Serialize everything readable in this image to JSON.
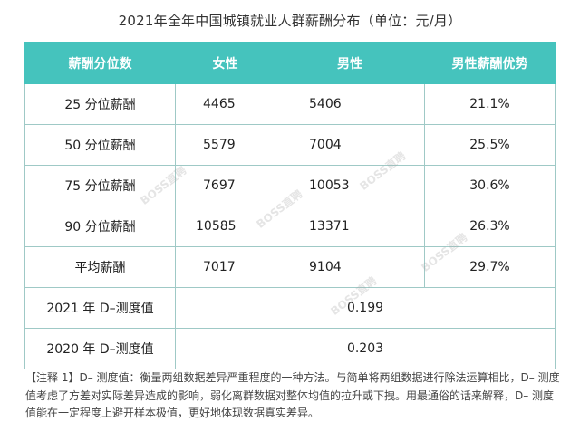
{
  "title": "2021年全年中国城镇就业人群薪酬分布（单位：元/月）",
  "chart_data": {
    "type": "table",
    "title": "2021年全年中国城镇就业人群薪酬分布（单位：元/月）",
    "columns": [
      "薪酬分位数",
      "女性",
      "男性",
      "男性薪酬优势"
    ],
    "rows": [
      [
        "25 分位薪酬",
        "4465",
        "5406",
        "21.1%"
      ],
      [
        "50 分位薪酬",
        "5579",
        "7004",
        "25.5%"
      ],
      [
        "75 分位薪酬",
        "7697",
        "10053",
        "30.6%"
      ],
      [
        "90 分位薪酬",
        "10585",
        "13371",
        "26.3%"
      ],
      [
        "平均薪酬",
        "7017",
        "9104",
        "29.7%"
      ]
    ],
    "d_rows": [
      [
        "2021 年 D–测度值",
        "0.199"
      ],
      [
        "2020 年 D–测度值",
        "0.203"
      ]
    ]
  },
  "note": "【注释 1】D– 测度值：衡量两组数据差异严重程度的一种方法。与简单将两组数据进行除法运算相比，D– 测度值考虑了方差对实际差异造成的影响，弱化离群数据对整体均值的拉升或下拽。用最通俗的话来解释，D– 测度值能在一定程度上避开样本极值，更好地体现数据真实差异。",
  "watermark": "BOSS直聘",
  "colors": {
    "header_bg": "#45c3bd",
    "border": "#9fc9c6"
  }
}
